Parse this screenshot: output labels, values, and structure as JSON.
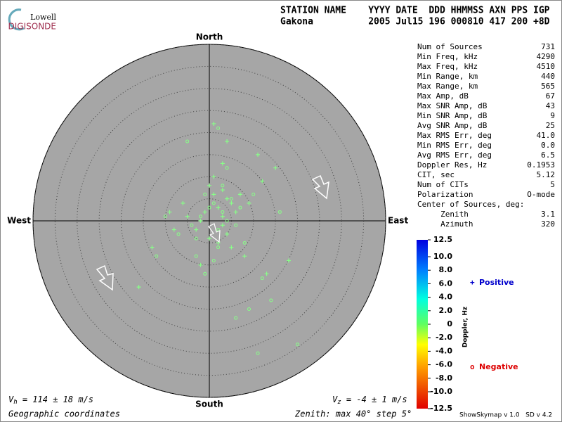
{
  "header": {
    "logo_top": "Lowell",
    "logo_bottom": "DIGISONDE",
    "labels": "STATION NAME    YYYY DATE  DDD HHMMSS AXN PPS IGP",
    "values": "Gakona          2005 Jul15 196 000810 417 200 +8D"
  },
  "chart_data": {
    "type": "skymap",
    "directions": {
      "north": "North",
      "south": "South",
      "east": "East",
      "west": "West"
    },
    "xlim": [
      -40,
      40
    ],
    "ylim": [
      -40,
      40
    ],
    "rticks": [
      5,
      10,
      15,
      20,
      25,
      30,
      35,
      40
    ],
    "series": [
      {
        "name": "Positive",
        "marker": "+",
        "color": "#88ff88",
        "legend_color": "#0000cc",
        "x": [
          2,
          4,
          -1,
          3,
          1,
          5,
          -2,
          0,
          6,
          3,
          2,
          -3,
          7,
          1,
          4,
          -5,
          9,
          12,
          -9,
          3,
          15,
          -13,
          8,
          2,
          -6,
          11,
          4,
          -2,
          13,
          -16,
          5,
          1,
          18,
          0,
          -8,
          3
        ],
        "y": [
          3,
          5,
          2,
          1,
          6,
          4,
          0,
          8,
          2,
          -1,
          3,
          -2,
          6,
          10,
          -3,
          1,
          4,
          9,
          2,
          13,
          12,
          -6,
          -8,
          -5,
          4,
          15,
          18,
          -10,
          -12,
          -15,
          -6,
          22,
          -9,
          -4,
          -2,
          7
        ]
      },
      {
        "name": "Negative",
        "marker": "o",
        "color": "#88ff88",
        "legend_color": "#dd0000",
        "x": [
          1,
          3,
          -1,
          4,
          2,
          0,
          5,
          -2,
          6,
          3,
          -3,
          2,
          7,
          -4,
          8,
          1,
          -7,
          10,
          -10,
          4,
          12,
          -1,
          14,
          6,
          -12,
          9,
          16,
          -5,
          2,
          20,
          -3,
          11
        ],
        "y": [
          4,
          2,
          6,
          0,
          -2,
          3,
          5,
          1,
          -1,
          8,
          -4,
          -6,
          3,
          -1,
          -5,
          -9,
          -3,
          6,
          1,
          12,
          -13,
          -12,
          -18,
          -22,
          -8,
          -20,
          2,
          18,
          21,
          -28,
          -8,
          -30
        ]
      }
    ],
    "colorbar": {
      "label": "Doppler, Hz",
      "ylim": [
        -12.5,
        12.5
      ],
      "yticks": [
        12.5,
        {
          "value": 10,
          "label": "10.0"
        },
        {
          "value": 8,
          "label": "8.0"
        },
        {
          "value": 6,
          "label": "6.0"
        },
        {
          "value": 4,
          "label": "4.0"
        },
        {
          "value": 2,
          "label": "2.0"
        },
        0,
        {
          "value": -2,
          "label": "-2.0"
        },
        {
          "value": -4,
          "label": "-4.0"
        },
        {
          "value": -6,
          "label": "-6.0"
        },
        {
          "value": -8,
          "label": "-8.0"
        },
        {
          "value": -10,
          "label": "-10.0"
        },
        -12.5
      ]
    }
  },
  "stats": [
    [
      "Num of Sources",
      "731"
    ],
    [
      "Min Freq, kHz",
      "4290"
    ],
    [
      "Max Freq, kHz",
      "4510"
    ],
    [
      "Min Range, km",
      "440"
    ],
    [
      "Max Range, km",
      "565"
    ],
    [
      "Max Amp, dB",
      "67"
    ],
    [
      "Max SNR Amp, dB",
      "43"
    ],
    [
      "Min SNR Amp, dB",
      "9"
    ],
    [
      "Avg SNR Amp, dB",
      "25"
    ],
    [
      "Max RMS Err, deg",
      "41.0"
    ],
    [
      "Min RMS Err, deg",
      "0.0"
    ],
    [
      "Avg RMS Err, deg",
      "6.5"
    ],
    [
      "Doppler Res, Hz",
      "0.1953"
    ],
    [
      "CIT, sec",
      "5.12"
    ],
    [
      "Num of CITs",
      "5"
    ],
    [
      "Polarization",
      "O-mode"
    ],
    [
      "Center of Sources, deg:",
      ""
    ],
    [
      "     Zenith",
      "3.1"
    ],
    [
      "     Azimuth",
      "320"
    ]
  ],
  "footer": {
    "vh_symbol": "V",
    "vh_sub": "h",
    "vh_text": " = 114 ± 18 m/s",
    "vz_symbol": "V",
    "vz_sub": "z",
    "vz_text": " = -4 ± 1 m/s",
    "coords": "Geographic coordinates",
    "zenith": "Zenith: max 40°  step 5°",
    "version": "ShowSkymap v 1.0   SD v 4.2"
  }
}
